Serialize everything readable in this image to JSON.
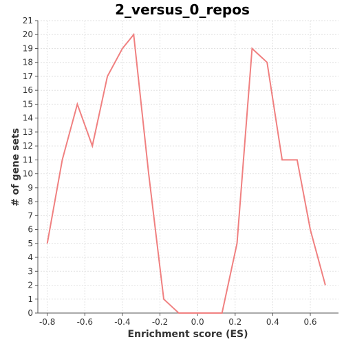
{
  "chart_data": {
    "type": "line",
    "title": "2_versus_0_repos",
    "xlabel": "Enrichment score (ES)",
    "ylabel": "# of gene sets",
    "xlim": [
      -0.85,
      0.75
    ],
    "ylim": [
      0,
      21
    ],
    "x_ticks": [
      -0.8,
      -0.6,
      -0.4,
      -0.2,
      0.0,
      0.2,
      0.4,
      0.6
    ],
    "x_tick_labels": [
      "-0.8",
      "-0.6",
      "-0.4",
      "-0.2",
      "0.0",
      "0.2",
      "0.4",
      "0.6"
    ],
    "y_ticks": [
      0,
      1,
      2,
      3,
      4,
      5,
      6,
      7,
      8,
      9,
      10,
      11,
      12,
      13,
      14,
      15,
      16,
      17,
      18,
      19,
      20,
      21
    ],
    "grid": true,
    "series": [
      {
        "color": "#f08080",
        "x": [
          -0.8,
          -0.72,
          -0.64,
          -0.56,
          -0.48,
          -0.4,
          -0.34,
          -0.26,
          -0.18,
          -0.1,
          -0.02,
          0.05,
          0.13,
          0.21,
          0.29,
          0.37,
          0.45,
          0.53,
          0.6,
          0.68
        ],
        "y": [
          5,
          11,
          15,
          12,
          17,
          19,
          20,
          10,
          1,
          0,
          0,
          0,
          0,
          5,
          19,
          18,
          11,
          11,
          6,
          2
        ]
      }
    ]
  }
}
